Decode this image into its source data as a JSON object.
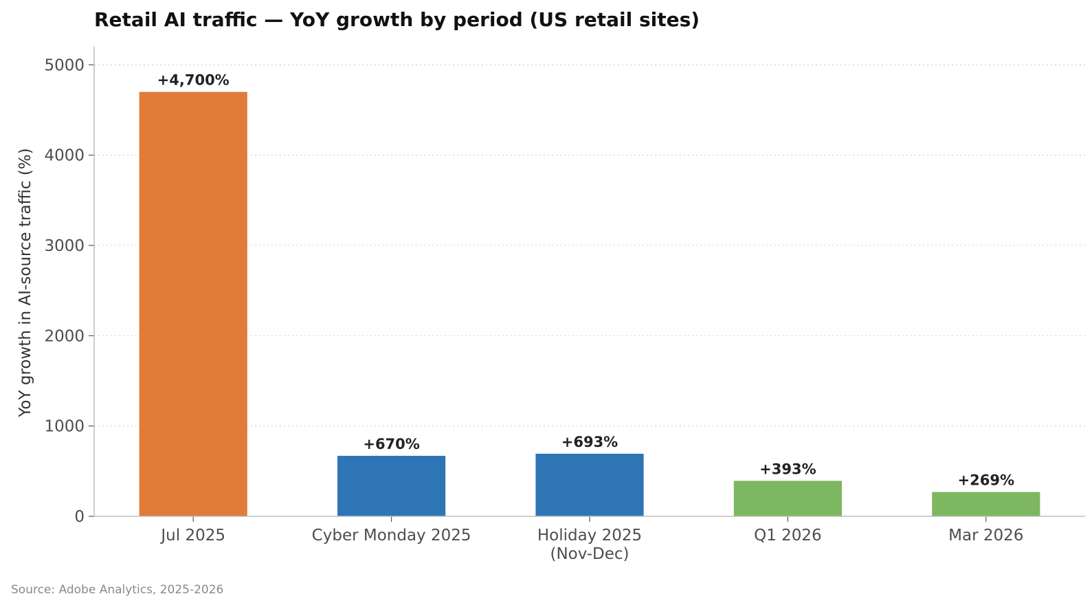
{
  "chart_data": {
    "type": "bar",
    "title": "Retail AI traffic — YoY growth by period (US retail sites)",
    "ylabel": "YoY growth in AI-source traffic (%)",
    "xlabel": "",
    "ylim": [
      0,
      5200
    ],
    "yticks": [
      0,
      1000,
      2000,
      3000,
      4000,
      5000
    ],
    "grid": "horizontal dotted",
    "categories": [
      [
        "Jul 2025"
      ],
      [
        "Cyber Monday 2025"
      ],
      [
        "Holiday 2025",
        "(Nov-Dec)"
      ],
      [
        "Q1 2026"
      ],
      [
        "Mar 2026"
      ]
    ],
    "values": [
      4700,
      670,
      693,
      393,
      269
    ],
    "data_labels": [
      "+4,700%",
      "+670%",
      "+693%",
      "+393%",
      "+269%"
    ],
    "colors": [
      "#e07b39",
      "#2e75b6",
      "#2e75b6",
      "#7db760",
      "#7db760"
    ],
    "source": "Source: Adobe Analytics, 2025-2026"
  }
}
